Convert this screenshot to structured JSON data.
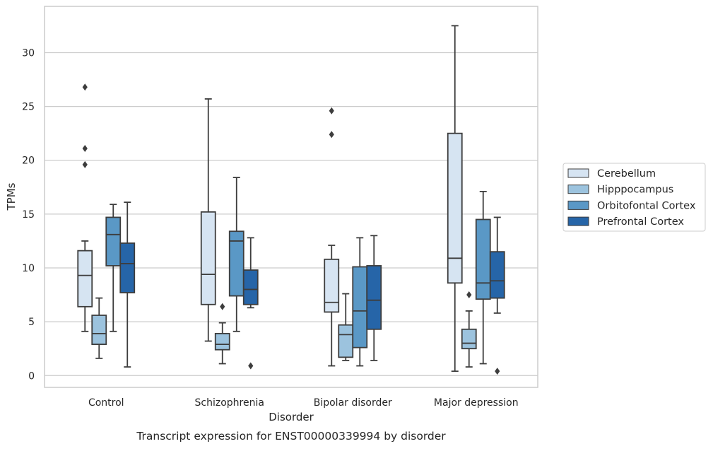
{
  "chart_data": {
    "type": "box",
    "xlabel": "Disorder",
    "ylabel": "TPMs",
    "caption": "Transcript expression for ENST00000339994 by disorder",
    "categories": [
      "Control",
      "Schizophrenia",
      "Bipolar disorder",
      "Major depression"
    ],
    "yticks": [
      0,
      5,
      10,
      15,
      20,
      25,
      30
    ],
    "ylim": [
      -1.1,
      34.3
    ],
    "grid": "horizontal",
    "legend_position": "right",
    "series": [
      {
        "name": "Cerebellum",
        "color": "#d6e4f2",
        "boxes": [
          {
            "whislo": 4.1,
            "q1": 6.4,
            "med": 9.3,
            "q3": 11.6,
            "whishi": 12.5,
            "fliers": [
              19.6,
              21.1,
              26.8
            ]
          },
          {
            "whislo": 3.2,
            "q1": 6.6,
            "med": 9.4,
            "q3": 15.2,
            "whishi": 25.7,
            "fliers": []
          },
          {
            "whislo": 0.9,
            "q1": 5.9,
            "med": 6.8,
            "q3": 10.8,
            "whishi": 12.1,
            "fliers": [
              22.4,
              24.6
            ]
          },
          {
            "whislo": 0.4,
            "q1": 8.6,
            "med": 10.9,
            "q3": 22.5,
            "whishi": 32.5,
            "fliers": []
          }
        ]
      },
      {
        "name": "Hipppocampus",
        "color": "#9cc3de",
        "boxes": [
          {
            "whislo": 1.6,
            "q1": 2.9,
            "med": 3.9,
            "q3": 5.6,
            "whishi": 7.2,
            "fliers": []
          },
          {
            "whislo": 1.1,
            "q1": 2.4,
            "med": 2.9,
            "q3": 3.9,
            "whishi": 4.9,
            "fliers": [
              6.4
            ]
          },
          {
            "whislo": 1.4,
            "q1": 1.7,
            "med": 3.8,
            "q3": 4.7,
            "whishi": 7.6,
            "fliers": []
          },
          {
            "whislo": 0.8,
            "q1": 2.5,
            "med": 3.0,
            "q3": 4.3,
            "whishi": 6.0,
            "fliers": [
              7.5
            ]
          }
        ]
      },
      {
        "name": "Orbitofontal Cortex",
        "color": "#5a98c6",
        "boxes": [
          {
            "whislo": 4.1,
            "q1": 10.2,
            "med": 13.1,
            "q3": 14.7,
            "whishi": 15.9,
            "fliers": []
          },
          {
            "whislo": 4.1,
            "q1": 7.4,
            "med": 12.5,
            "q3": 13.4,
            "whishi": 18.4,
            "fliers": []
          },
          {
            "whislo": 0.9,
            "q1": 2.6,
            "med": 6.0,
            "q3": 10.1,
            "whishi": 12.8,
            "fliers": []
          },
          {
            "whislo": 1.1,
            "q1": 7.1,
            "med": 8.6,
            "q3": 14.5,
            "whishi": 17.1,
            "fliers": []
          }
        ]
      },
      {
        "name": "Prefrontal Cortex",
        "color": "#2665a8",
        "boxes": [
          {
            "whislo": 0.8,
            "q1": 7.7,
            "med": 10.4,
            "q3": 12.3,
            "whishi": 16.1,
            "fliers": []
          },
          {
            "whislo": 6.3,
            "q1": 6.6,
            "med": 8.0,
            "q3": 9.8,
            "whishi": 12.8,
            "fliers": [
              0.9
            ]
          },
          {
            "whislo": 1.4,
            "q1": 4.3,
            "med": 7.0,
            "q3": 10.2,
            "whishi": 13.0,
            "fliers": []
          },
          {
            "whislo": 5.8,
            "q1": 7.2,
            "med": 8.8,
            "q3": 11.5,
            "whishi": 14.7,
            "fliers": [
              0.4
            ]
          }
        ]
      }
    ]
  }
}
